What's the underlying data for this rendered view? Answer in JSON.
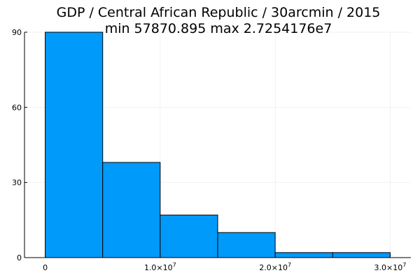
{
  "chart_data": {
    "type": "bar",
    "title": "GDP / Central African Republic / 30arcmin / 2015",
    "subtitle": "min 57870.895  max 2.7254176e7",
    "xlabel": "",
    "ylabel": "",
    "bin_edges": [
      0,
      5000000,
      10000000,
      15000000,
      20000000,
      25000000,
      30000000
    ],
    "values": [
      90,
      38,
      17,
      10,
      2,
      2
    ],
    "xlim": [
      -1800000,
      31800000
    ],
    "ylim": [
      0,
      90
    ],
    "yticks": [
      0,
      30,
      60,
      90
    ],
    "ytick_labels": [
      "0",
      "30",
      "60",
      "90"
    ],
    "xticks": [
      0,
      10000000,
      20000000,
      30000000
    ],
    "xtick_labels": [
      {
        "base": "0",
        "exp": ""
      },
      {
        "base": "1.0×10",
        "exp": "7"
      },
      {
        "base": "2.0×10",
        "exp": "7"
      },
      {
        "base": "3.0×10",
        "exp": "7"
      }
    ],
    "grid": true,
    "legend": "none",
    "bar_color": "#009AFA"
  }
}
